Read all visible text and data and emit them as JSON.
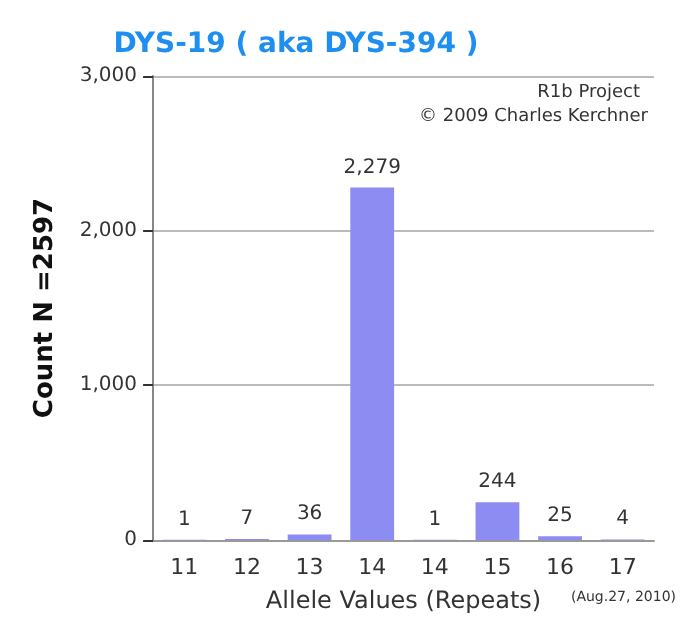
{
  "chart_data": {
    "type": "bar",
    "title": "DYS-19 ( aka DYS-394 )",
    "xlabel": "Allele Values (Repeats)",
    "ylabel": "Count N =2597",
    "categories": [
      "11",
      "12",
      "13",
      "14",
      "14",
      "15",
      "16",
      "17"
    ],
    "values": [
      1,
      7,
      36,
      2279,
      1,
      244,
      25,
      4
    ],
    "value_labels": [
      "1",
      "7",
      "36",
      "2,279",
      "1",
      "244",
      "25",
      "4"
    ],
    "color": "#8c8cf2",
    "ylim": [
      0,
      3000
    ],
    "yticks": [
      {
        "value": 0,
        "label": "0"
      },
      {
        "value": 1000,
        "label": "1,000"
      },
      {
        "value": 2000,
        "label": "2,000"
      },
      {
        "value": 3000,
        "label": "3,000"
      }
    ],
    "grid": "y",
    "annotations": [
      "R1b Project",
      "© 2009 Charles Kerchner",
      "(Aug.27, 2010)"
    ]
  }
}
